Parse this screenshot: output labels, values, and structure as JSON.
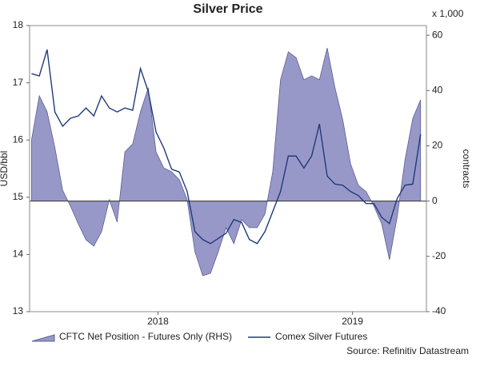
{
  "chart_data": {
    "type": "line",
    "title": "Silver Price",
    "y_label": "USD/bbl",
    "y2_label": "contracts",
    "y2_unit": "x 1,000",
    "source": "Source: Refinitiv Datastream",
    "x": [
      2017.35,
      2017.39,
      2017.43,
      2017.47,
      2017.51,
      2017.55,
      2017.59,
      2017.63,
      2017.67,
      2017.71,
      2017.75,
      2017.79,
      2017.83,
      2017.87,
      2017.91,
      2017.95,
      2017.99,
      2018.03,
      2018.07,
      2018.11,
      2018.15,
      2018.19,
      2018.23,
      2018.27,
      2018.31,
      2018.35,
      2018.39,
      2018.43,
      2018.47,
      2018.51,
      2018.55,
      2018.59,
      2018.63,
      2018.67,
      2018.71,
      2018.75,
      2018.79,
      2018.83,
      2018.87,
      2018.91,
      2018.95,
      2018.99,
      2019.03,
      2019.07,
      2019.11,
      2019.15,
      2019.19,
      2019.23,
      2019.27,
      2019.31,
      2019.35
    ],
    "series": [
      {
        "name": "CFTC Net Position - Futures Only (RHS)",
        "type": "area",
        "axis": "y2",
        "color": "#9898c8",
        "values": [
          22.2,
          38.1,
          32.3,
          19.3,
          3.9,
          -1.8,
          -8.2,
          -14,
          -16.3,
          -11.1,
          0.5,
          -7.6,
          17.8,
          20.7,
          32.3,
          41,
          17.8,
          12,
          10.6,
          7.7,
          0.5,
          -18.3,
          -27,
          -26.1,
          -18.3,
          -9.6,
          -15.4,
          -6.7,
          -9.6,
          -9.6,
          -4.7,
          10.6,
          43.9,
          54,
          51.9,
          43.9,
          45.3,
          43.9,
          55.4,
          41,
          29.4,
          13.5,
          5.7,
          3.4,
          -1.8,
          -8.2,
          -21.2,
          -5.6,
          14.9,
          29.9,
          36.6
        ]
      },
      {
        "name": "Comex Silver Futures",
        "type": "line",
        "color": "#1f3a7a",
        "values": [
          17.16,
          17.12,
          17.58,
          16.49,
          16.24,
          16.38,
          16.42,
          16.56,
          16.42,
          16.77,
          16.56,
          16.49,
          16.56,
          16.52,
          17.25,
          16.85,
          16.14,
          15.86,
          15.49,
          15.44,
          15.1,
          14.4,
          14.26,
          14.19,
          14.28,
          14.37,
          14.61,
          14.56,
          14.26,
          14.19,
          14.4,
          14.75,
          15.1,
          15.72,
          15.72,
          15.51,
          15.72,
          16.28,
          15.37,
          15.23,
          15.21,
          15.1,
          15.03,
          14.89,
          14.89,
          14.65,
          14.54,
          14.98,
          15.21,
          15.23,
          16.1
        ]
      }
    ],
    "xlim": [
      2017.34,
      2019.38
    ],
    "xticks": [
      2018,
      2019
    ],
    "ylim": [
      13,
      18
    ],
    "yticks": [
      13,
      14,
      15,
      16,
      17,
      18
    ],
    "y2lim": [
      -40,
      63.5
    ],
    "y2ticks": [
      -40,
      -20,
      0,
      20,
      40,
      60
    ]
  }
}
